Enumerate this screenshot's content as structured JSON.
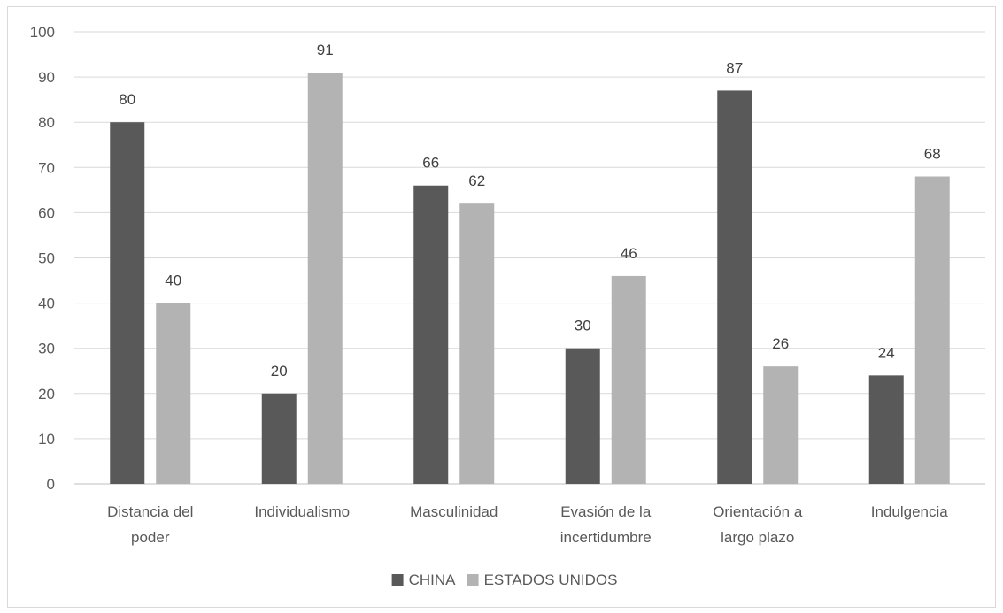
{
  "chart_data": {
    "type": "bar",
    "categories": [
      [
        "Distancia del",
        "poder"
      ],
      [
        "Individualismo"
      ],
      [
        "Masculinidad"
      ],
      [
        "Evasión de la",
        "incertidumbre"
      ],
      [
        "Orientación a",
        "largo plazo"
      ],
      [
        "Indulgencia"
      ]
    ],
    "series": [
      {
        "name": "CHINA",
        "color": "#595959",
        "values": [
          80,
          20,
          66,
          30,
          87,
          24
        ]
      },
      {
        "name": "ESTADOS UNIDOS",
        "color": "#b3b3b3",
        "values": [
          40,
          91,
          62,
          46,
          26,
          68
        ]
      }
    ],
    "ylim": [
      0,
      100
    ],
    "yticks": [
      0,
      10,
      20,
      30,
      40,
      50,
      60,
      70,
      80,
      90,
      100
    ],
    "grid": true,
    "legend": "bottom-center",
    "data_labels": true,
    "title": "",
    "xlabel": "",
    "ylabel": ""
  }
}
